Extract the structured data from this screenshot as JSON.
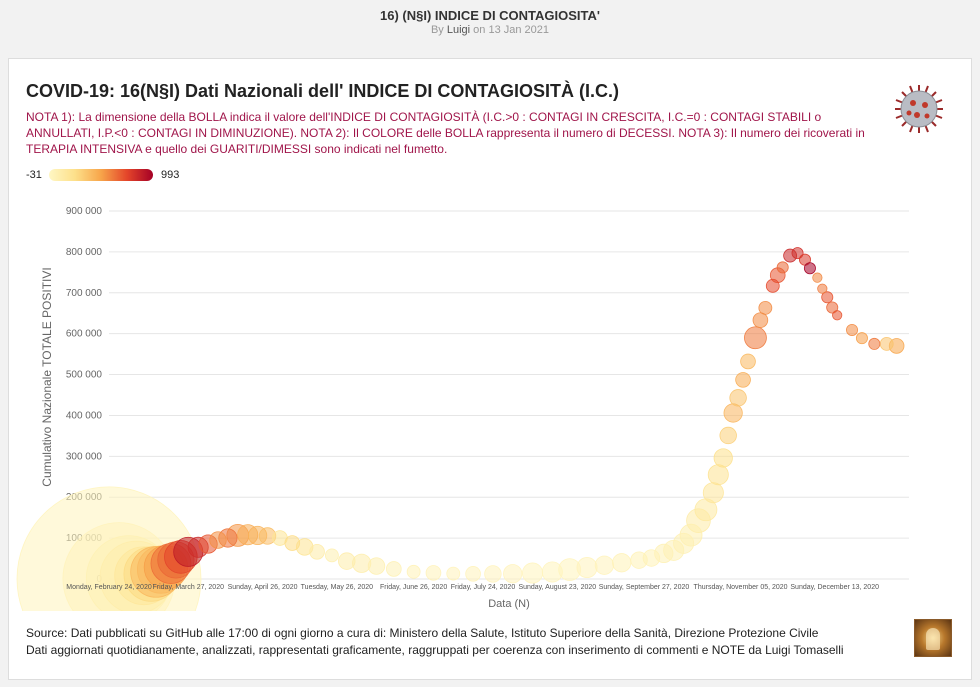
{
  "page": {
    "title": "16) (N§I) INDICE DI CONTAGIOSITA'",
    "by_prefix": "By",
    "author": "Luigi",
    "date_text": "on 13 Jan 2021"
  },
  "card": {
    "title": "COVID-19: 16(N§I) Dati Nazionali dell' INDICE DI CONTAGIOSITÀ (I.C.)",
    "notes": "NOTA 1): La dimensione della BOLLA indica il valore dell'INDICE DI CONTAGIOSITÀ (I.C.>0 : CONTAGI IN CRESCITA, I.C.=0 : CONTAGI STABILI o ANNULLATI, I.P.<0 : CONTAGI IN DIMINUZIONE). NOTA 2): Il COLORE delle BOLLA rappresenta il numero di DECESSI. NOTA 3): Il numero dei ricoverati in TERAPIA INTENSIVA e quello dei GUARITI/DIMESSI sono indicati nel fumetto.",
    "colorbar_min": "-31",
    "colorbar_max": "993",
    "source_line1": "Source: Dati pubblicati su GitHub alle 17:00 di ogni giorno a cura di: Ministero della Salute, Istituto Superiore della Sanità, Direzione Protezione Civile",
    "source_line2": "Dati aggiornati quotidianamente, analizzati, rappresentati graficamente, raggruppati per coerenza con inserimento di commenti e NOTE da Luigi Tomaselli"
  },
  "colors": {
    "scale": [
      "#fff7c4",
      "#fde08a",
      "#f7a54a",
      "#e4452a",
      "#a50026"
    ],
    "grid": "#e6e6e6",
    "notes": "#a0154a"
  },
  "chart_data": {
    "type": "scatter",
    "subtype": "bubble",
    "xlabel": "Data (N)",
    "ylabel": "Cumulativo Nazionale TOTALE POSITIVI",
    "x_range": [
      "2020-02-24",
      "2021-01-12"
    ],
    "ylim": [
      0,
      900000
    ],
    "y_ticks": [
      "0",
      "100 000",
      "200 000",
      "300 000",
      "400 000",
      "500 000",
      "600 000",
      "700 000",
      "800 000",
      "900 000"
    ],
    "x_ticks": [
      {
        "date": "2020-02-24",
        "label": "Monday, February 24, 2020"
      },
      {
        "date": "2020-03-27",
        "label": "Friday, March 27, 2020"
      },
      {
        "date": "2020-04-26",
        "label": "Sunday, April 26, 2020"
      },
      {
        "date": "2020-05-26",
        "label": "Tuesday, May 26, 2020"
      },
      {
        "date": "2020-06-26",
        "label": "Friday, June 26, 2020"
      },
      {
        "date": "2020-07-24",
        "label": "Friday, July 24, 2020"
      },
      {
        "date": "2020-08-23",
        "label": "Sunday, August 23, 2020"
      },
      {
        "date": "2020-09-27",
        "label": "Sunday, September 27, 2020"
      },
      {
        "date": "2020-11-05",
        "label": "Thursday, November 05, 2020"
      },
      {
        "date": "2020-12-13",
        "label": "Sunday, December 13, 2020"
      }
    ],
    "grid": true,
    "color_scale": {
      "min": -31,
      "max": 993
    },
    "size_meaning": "Indice di contagiosità",
    "color_meaning": "Decessi",
    "points": [
      {
        "x": "2020-02-24",
        "y": 220,
        "size": 100,
        "color": 5
      },
      {
        "x": "2020-02-28",
        "y": 900,
        "size": 60,
        "color": 10
      },
      {
        "x": "2020-03-03",
        "y": 2000,
        "size": 45,
        "color": 40
      },
      {
        "x": "2020-03-06",
        "y": 4000,
        "size": 38,
        "color": 80
      },
      {
        "x": "2020-03-09",
        "y": 7900,
        "size": 30,
        "color": 150
      },
      {
        "x": "2020-03-12",
        "y": 12000,
        "size": 28,
        "color": 250
      },
      {
        "x": "2020-03-14",
        "y": 17500,
        "size": 26,
        "color": 400
      },
      {
        "x": "2020-03-16",
        "y": 23000,
        "size": 24,
        "color": 400
      },
      {
        "x": "2020-03-18",
        "y": 28700,
        "size": 22,
        "color": 500
      },
      {
        "x": "2020-03-20",
        "y": 37800,
        "size": 20,
        "color": 630
      },
      {
        "x": "2020-03-22",
        "y": 46600,
        "size": 18,
        "color": 650
      },
      {
        "x": "2020-03-24",
        "y": 54000,
        "size": 16,
        "color": 740
      },
      {
        "x": "2020-03-27",
        "y": 66400,
        "size": 14,
        "color": 900
      },
      {
        "x": "2020-03-31",
        "y": 77600,
        "size": 9,
        "color": 830
      },
      {
        "x": "2020-04-04",
        "y": 85400,
        "size": 8,
        "color": 700
      },
      {
        "x": "2020-04-08",
        "y": 95200,
        "size": 7,
        "color": 540
      },
      {
        "x": "2020-04-12",
        "y": 100300,
        "size": 8,
        "color": 620
      },
      {
        "x": "2020-04-16",
        "y": 106600,
        "size": 10,
        "color": 520
      },
      {
        "x": "2020-04-20",
        "y": 108200,
        "size": 9,
        "color": 450
      },
      {
        "x": "2020-04-24",
        "y": 106500,
        "size": 8,
        "color": 420
      },
      {
        "x": "2020-04-28",
        "y": 105200,
        "size": 7,
        "color": 380
      },
      {
        "x": "2020-05-03",
        "y": 100200,
        "size": 6,
        "color": 170
      },
      {
        "x": "2020-05-08",
        "y": 87900,
        "size": 6,
        "color": 240
      },
      {
        "x": "2020-05-13",
        "y": 78400,
        "size": 7,
        "color": 190
      },
      {
        "x": "2020-05-18",
        "y": 66500,
        "size": 6,
        "color": 100
      },
      {
        "x": "2020-05-24",
        "y": 57800,
        "size": 5,
        "color": 60
      },
      {
        "x": "2020-05-30",
        "y": 43700,
        "size": 7,
        "color": 90
      },
      {
        "x": "2020-06-05",
        "y": 38400,
        "size": 8,
        "color": 80
      },
      {
        "x": "2020-06-11",
        "y": 31700,
        "size": 7,
        "color": 60
      },
      {
        "x": "2020-06-18",
        "y": 24600,
        "size": 6,
        "color": 40
      },
      {
        "x": "2020-06-26",
        "y": 17600,
        "size": 5,
        "color": 30
      },
      {
        "x": "2020-07-04",
        "y": 15000,
        "size": 6,
        "color": 20
      },
      {
        "x": "2020-07-12",
        "y": 13200,
        "size": 5,
        "color": 15
      },
      {
        "x": "2020-07-20",
        "y": 12600,
        "size": 6,
        "color": 15
      },
      {
        "x": "2020-07-28",
        "y": 12400,
        "size": 7,
        "color": 10
      },
      {
        "x": "2020-08-05",
        "y": 12900,
        "size": 8,
        "color": 10
      },
      {
        "x": "2020-08-13",
        "y": 14600,
        "size": 9,
        "color": 5
      },
      {
        "x": "2020-08-21",
        "y": 17100,
        "size": 9,
        "color": 5
      },
      {
        "x": "2020-08-28",
        "y": 23000,
        "size": 10,
        "color": 5
      },
      {
        "x": "2020-09-04",
        "y": 28000,
        "size": 9,
        "color": 10
      },
      {
        "x": "2020-09-11",
        "y": 33700,
        "size": 8,
        "color": 15
      },
      {
        "x": "2020-09-18",
        "y": 39700,
        "size": 8,
        "color": 25
      },
      {
        "x": "2020-09-25",
        "y": 46100,
        "size": 7,
        "color": 30
      },
      {
        "x": "2020-09-30",
        "y": 51300,
        "size": 7,
        "color": 30
      },
      {
        "x": "2020-10-05",
        "y": 62600,
        "size": 8,
        "color": 40
      },
      {
        "x": "2020-10-09",
        "y": 70100,
        "size": 9,
        "color": 40
      },
      {
        "x": "2020-10-13",
        "y": 87200,
        "size": 9,
        "color": 50
      },
      {
        "x": "2020-10-16",
        "y": 107300,
        "size": 10,
        "color": 70
      },
      {
        "x": "2020-10-19",
        "y": 142700,
        "size": 11,
        "color": 100
      },
      {
        "x": "2020-10-22",
        "y": 169300,
        "size": 10,
        "color": 130
      },
      {
        "x": "2020-10-25",
        "y": 211000,
        "size": 9,
        "color": 160
      },
      {
        "x": "2020-10-27",
        "y": 255000,
        "size": 9,
        "color": 200
      },
      {
        "x": "2020-10-29",
        "y": 296000,
        "size": 8,
        "color": 220
      },
      {
        "x": "2020-10-31",
        "y": 351000,
        "size": 7,
        "color": 297
      },
      {
        "x": "2020-11-02",
        "y": 406000,
        "size": 8,
        "color": 410
      },
      {
        "x": "2020-11-04",
        "y": 443000,
        "size": 7,
        "color": 350
      },
      {
        "x": "2020-11-06",
        "y": 487000,
        "size": 6,
        "color": 450
      },
      {
        "x": "2020-11-08",
        "y": 532000,
        "size": 6,
        "color": 400
      },
      {
        "x": "2020-11-11",
        "y": 590000,
        "size": 10,
        "color": 600
      },
      {
        "x": "2020-11-13",
        "y": 633000,
        "size": 6,
        "color": 550
      },
      {
        "x": "2020-11-15",
        "y": 663000,
        "size": 5,
        "color": 550
      },
      {
        "x": "2020-11-18",
        "y": 717000,
        "size": 5,
        "color": 730
      },
      {
        "x": "2020-11-20",
        "y": 743000,
        "size": 6,
        "color": 700
      },
      {
        "x": "2020-11-22",
        "y": 762000,
        "size": 4,
        "color": 650
      },
      {
        "x": "2020-11-25",
        "y": 791000,
        "size": 5,
        "color": 850
      },
      {
        "x": "2020-11-28",
        "y": 797000,
        "size": 4,
        "color": 820
      },
      {
        "x": "2020-12-01",
        "y": 781000,
        "size": 4,
        "color": 780
      },
      {
        "x": "2020-12-03",
        "y": 760000,
        "size": 4,
        "color": 993
      },
      {
        "x": "2020-12-06",
        "y": 737000,
        "size": 3,
        "color": 560
      },
      {
        "x": "2020-12-08",
        "y": 710000,
        "size": 3,
        "color": 600
      },
      {
        "x": "2020-12-10",
        "y": 689000,
        "size": 4,
        "color": 700
      },
      {
        "x": "2020-12-12",
        "y": 664000,
        "size": 4,
        "color": 650
      },
      {
        "x": "2020-12-14",
        "y": 645000,
        "size": 3,
        "color": 700
      },
      {
        "x": "2020-12-20",
        "y": 609000,
        "size": 4,
        "color": 550
      },
      {
        "x": "2020-12-24",
        "y": 589000,
        "size": 4,
        "color": 500
      },
      {
        "x": "2020-12-29",
        "y": 575000,
        "size": 4,
        "color": 600
      },
      {
        "x": "2021-01-03",
        "y": 575000,
        "size": 5,
        "color": 350
      },
      {
        "x": "2021-01-07",
        "y": 570000,
        "size": 6,
        "color": 480
      }
    ]
  }
}
